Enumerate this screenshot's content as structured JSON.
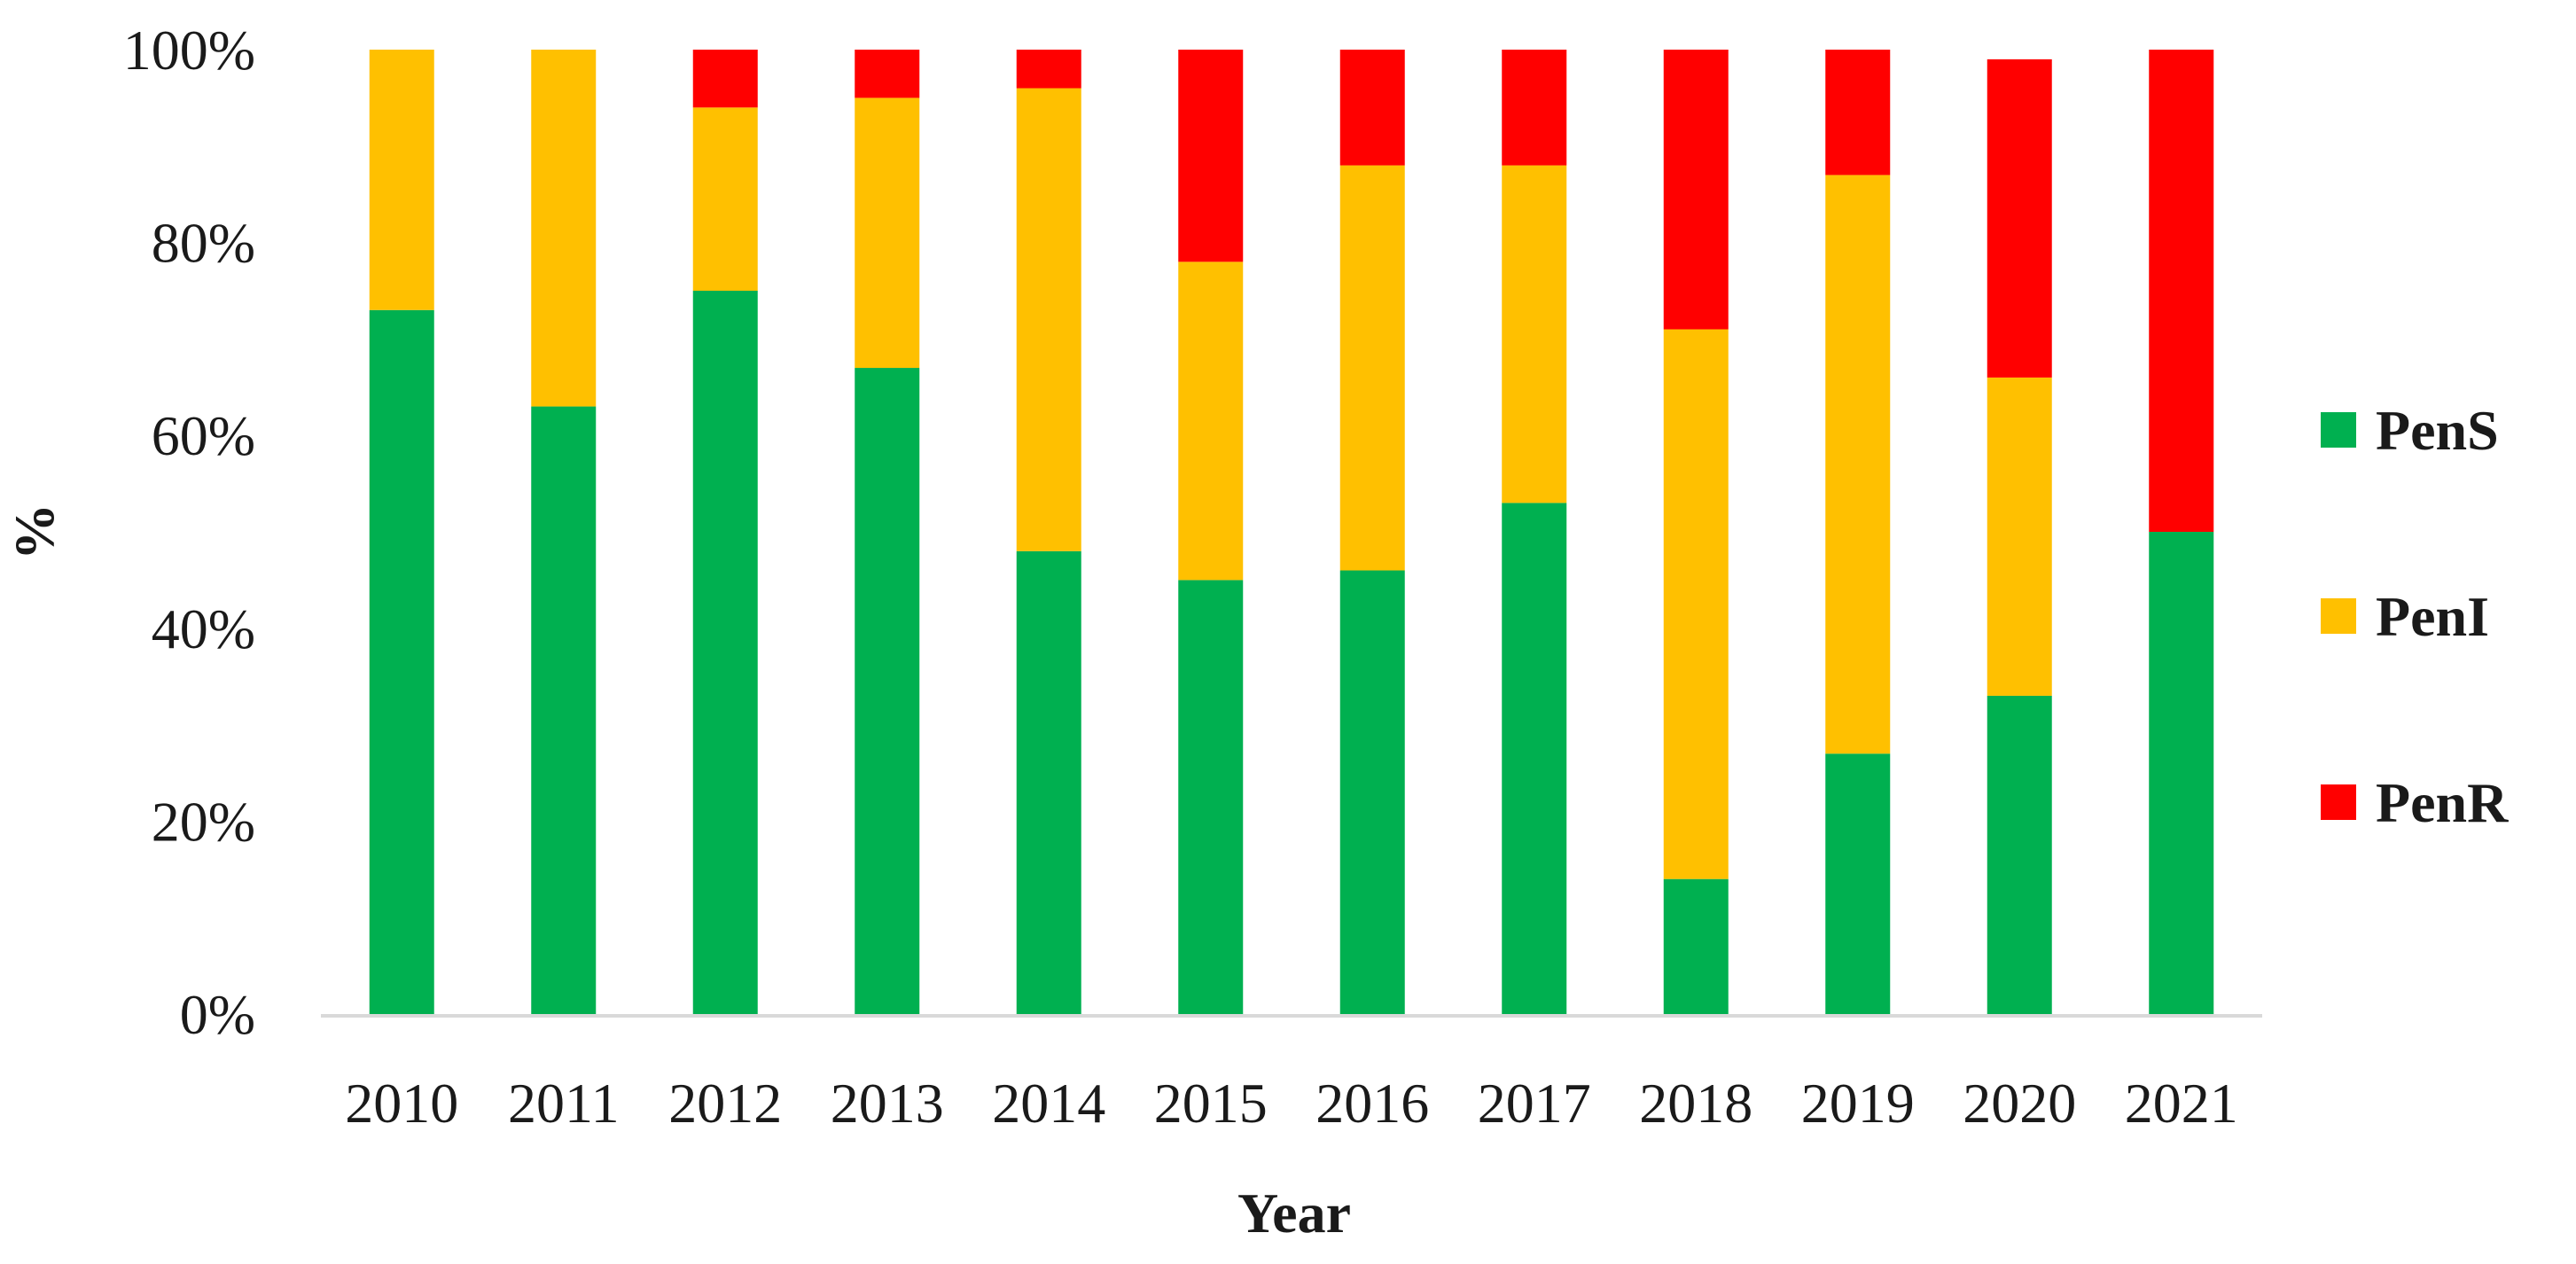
{
  "chart_data": {
    "type": "bar",
    "stacked": true,
    "title": "",
    "xlabel": "Year",
    "ylabel": "%",
    "ylim": [
      0,
      100
    ],
    "yticks": [
      "0%",
      "20%",
      "40%",
      "60%",
      "80%",
      "100%"
    ],
    "grid": false,
    "legend_position": "right",
    "categories": [
      "2010",
      "2011",
      "2012",
      "2013",
      "2014",
      "2015",
      "2016",
      "2017",
      "2018",
      "2019",
      "2020",
      "2021"
    ],
    "series": [
      {
        "name": "PenS",
        "color": "#00b050",
        "values": [
          73,
          63,
          75,
          67,
          48,
          45,
          46,
          53,
          14,
          27,
          33,
          50
        ]
      },
      {
        "name": "PenI",
        "color": "#ffc000",
        "values": [
          27,
          37,
          19,
          28,
          48,
          33,
          42,
          35,
          57,
          60,
          33,
          0
        ]
      },
      {
        "name": "PenR",
        "color": "#ff0000",
        "values": [
          0,
          0,
          6,
          5,
          4,
          22,
          12,
          12,
          29,
          13,
          33,
          50
        ]
      }
    ]
  }
}
